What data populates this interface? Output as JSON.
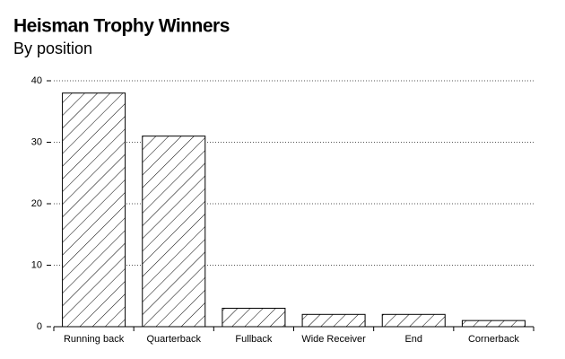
{
  "chart_data": {
    "type": "bar",
    "title": "Heisman Trophy Winners",
    "subtitle": "By position",
    "categories": [
      "Running back",
      "Quarterback",
      "Fullback",
      "Wide Receiver",
      "End",
      "Cornerback"
    ],
    "values": [
      38,
      31,
      3,
      2,
      2,
      1
    ],
    "color": "#000000",
    "ylim": [
      0,
      40
    ],
    "yticks": [
      0,
      10,
      20,
      30,
      40
    ],
    "grid": true
  }
}
